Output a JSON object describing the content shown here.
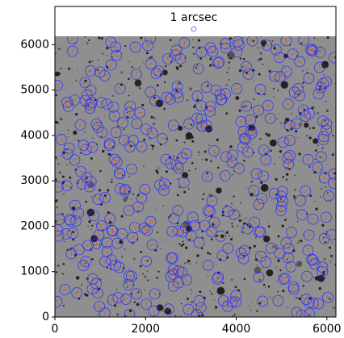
{
  "chart_data": {
    "type": "image",
    "annotation": "1 arcsec",
    "xlim": [
      0,
      6200
    ],
    "xticks": [
      0,
      2000,
      4000,
      6000
    ],
    "ylim": [
      0,
      6840
    ],
    "yticks": [
      0,
      1000,
      2000,
      3000,
      4000,
      5000,
      6000
    ]
  }
}
